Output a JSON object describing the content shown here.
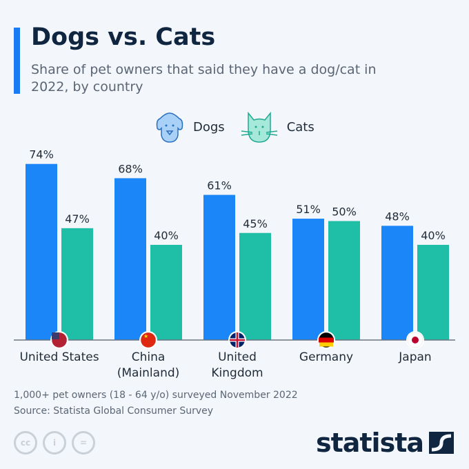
{
  "title": "Dogs vs. Cats",
  "subtitle": "Share of pet owners that said they have a dog/cat in 2022, by country",
  "footnote": "1,000+ pet owners (18 - 64 y/o) surveyed November 2022",
  "source": "Source: Statista Global Consumer Survey",
  "brand": "statista",
  "license_icons": [
    "cc",
    "by",
    "nd"
  ],
  "colors": {
    "dogs": "#1a86f8",
    "cats": "#1ebfa6"
  },
  "chart_data": {
    "type": "bar",
    "title": "Dogs vs. Cats",
    "categories": [
      [
        "United States"
      ],
      [
        "China",
        "(Mainland)"
      ],
      [
        "United",
        "Kingdom"
      ],
      [
        "Germany"
      ],
      [
        "Japan"
      ]
    ],
    "series": [
      {
        "name": "Dogs",
        "values": [
          74,
          68,
          61,
          51,
          48
        ]
      },
      {
        "name": "Cats",
        "values": [
          47,
          40,
          45,
          50,
          40
        ]
      }
    ],
    "unit": "%",
    "ylim": [
      0,
      80
    ],
    "grid": false,
    "legend": "top-center"
  }
}
